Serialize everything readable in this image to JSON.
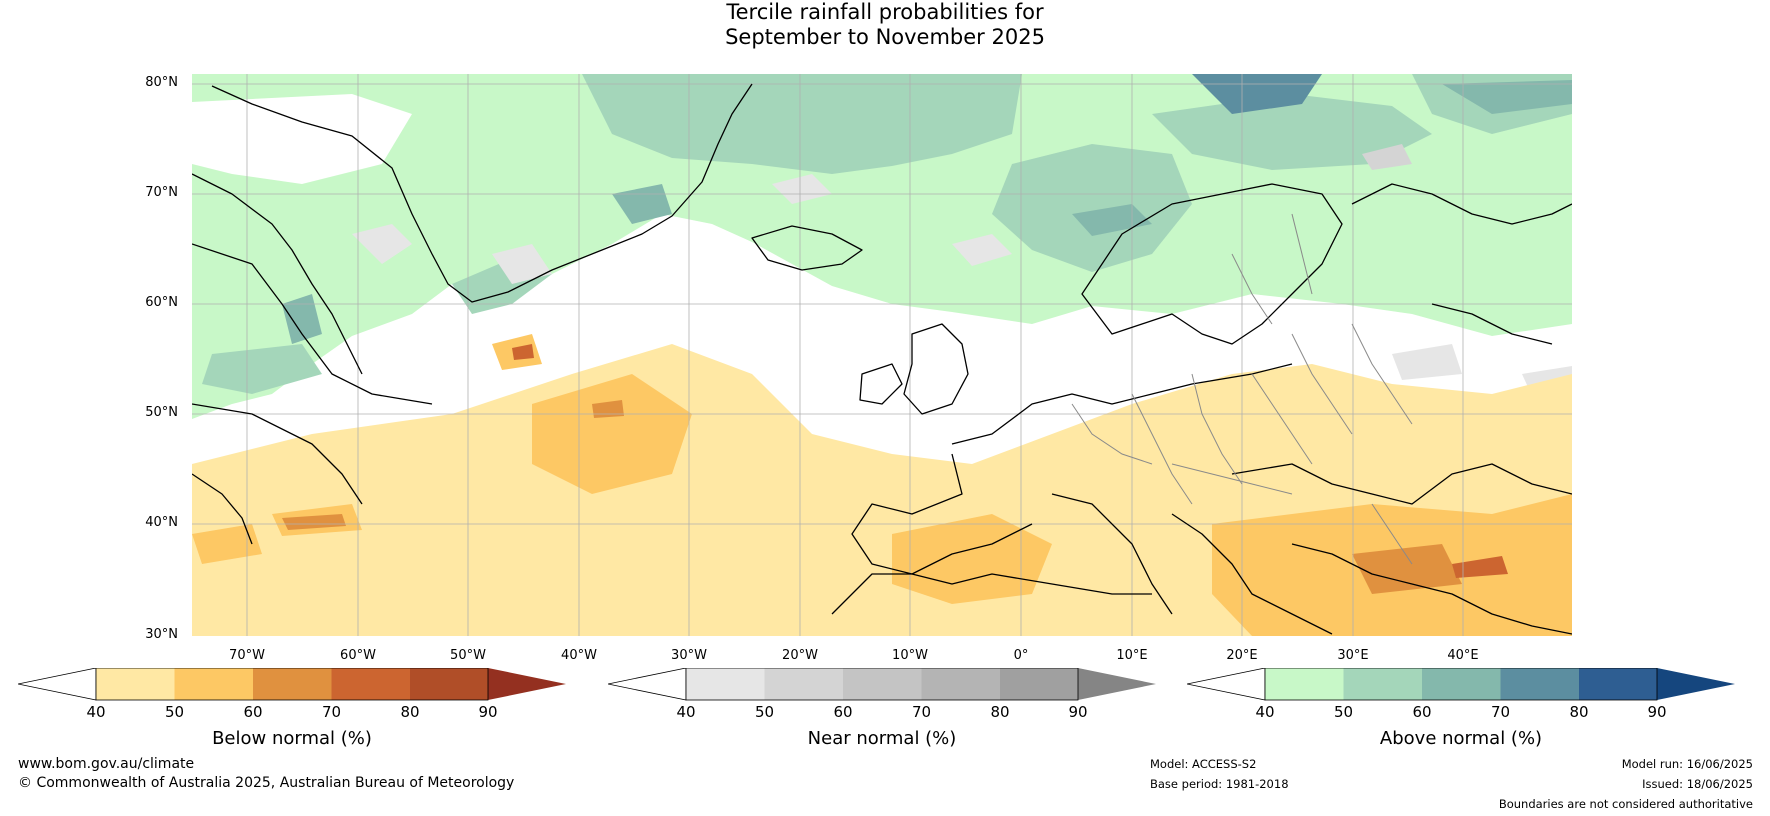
{
  "title": {
    "line1": "Tercile rainfall probabilities for",
    "line2": "September to November 2025"
  },
  "map": {
    "lat_labels": [
      "80°N",
      "70°N",
      "60°N",
      "50°N",
      "40°N",
      "30°N"
    ],
    "lon_labels": [
      "70°W",
      "60°W",
      "50°W",
      "40°W",
      "30°W",
      "20°W",
      "10°W",
      "0°",
      "10°E",
      "20°E",
      "30°E",
      "40°E"
    ],
    "colors": {
      "ocean_base": "#ffffff",
      "gridline": "#b0b0b0",
      "coastline": "#000000",
      "border": "#8a8a8a"
    }
  },
  "colorbars": [
    {
      "title": "Below normal (%)",
      "ticks": [
        "40",
        "50",
        "60",
        "70",
        "80",
        "90"
      ],
      "colors": [
        "#ffffff",
        "#ffe8a4",
        "#fdc864",
        "#e0913f",
        "#cc6530",
        "#b04e28",
        "#943020"
      ]
    },
    {
      "title": "Near normal (%)",
      "ticks": [
        "40",
        "50",
        "60",
        "70",
        "80",
        "90"
      ],
      "colors": [
        "#ffffff",
        "#e6e6e6",
        "#d4d4d4",
        "#c4c4c4",
        "#b4b4b4",
        "#a0a0a0",
        "#858585"
      ]
    },
    {
      "title": "Above normal (%)",
      "ticks": [
        "40",
        "50",
        "60",
        "70",
        "80",
        "90"
      ],
      "colors": [
        "#ffffff",
        "#c8f8c8",
        "#a4d6ba",
        "#84b8ac",
        "#5c8ea0",
        "#2e5e92",
        "#15467e"
      ]
    }
  ],
  "footer": {
    "website": "www.bom.gov.au/climate",
    "copyright": "© Commonwealth of Australia 2025, Australian Bureau of Meteorology",
    "model": "Model: ACCESS-S2",
    "base_period": "Base period: 1981-2018",
    "model_run": "Model run: 16/06/2025",
    "issued": "Issued: 18/06/2025",
    "disclaimer": "Boundaries are not considered authoritative"
  }
}
